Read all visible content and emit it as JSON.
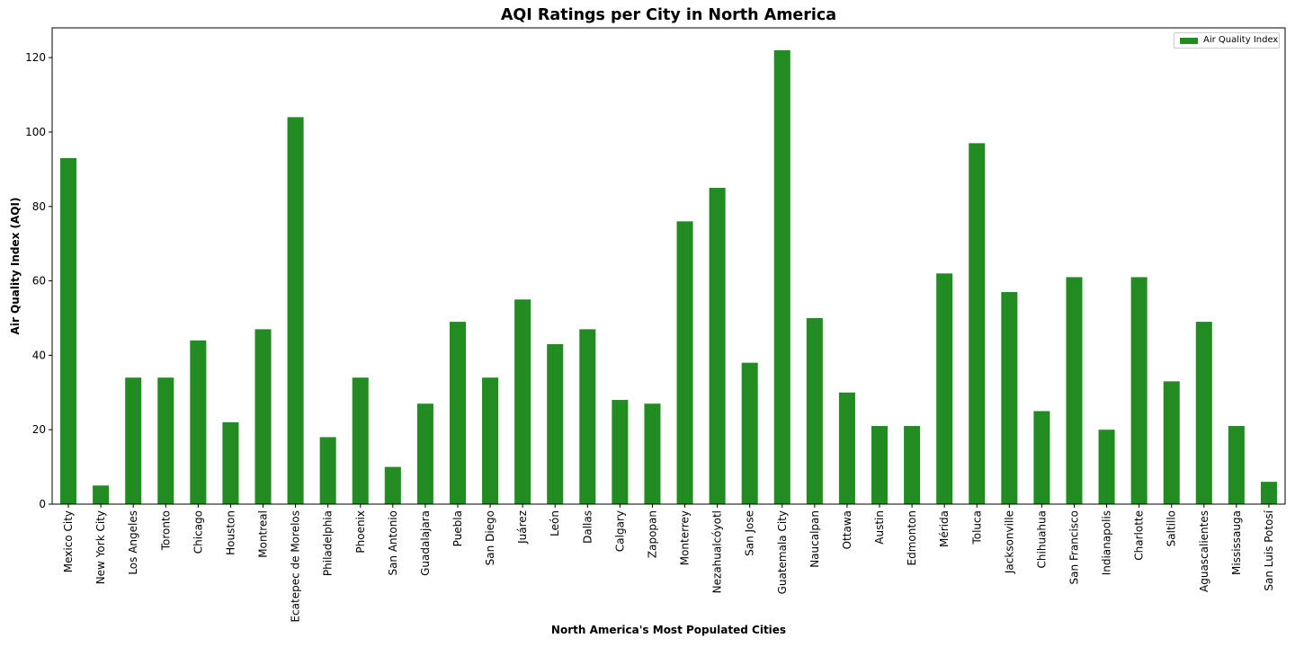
{
  "chart_data": {
    "type": "bar",
    "title": "AQI Ratings per City in North America",
    "xlabel": "North America's Most Populated Cities",
    "ylabel": "Air Quality Index (AQI)",
    "ylim": [
      0,
      128
    ],
    "yticks": [
      0,
      20,
      40,
      60,
      80,
      100,
      120
    ],
    "grid": false,
    "legend_position": "top-right",
    "bar_color": "#228b22",
    "categories": [
      "Mexico City",
      "New York City",
      "Los Angeles",
      "Toronto",
      "Chicago",
      "Houston",
      "Montreal",
      "Ecatepec de Morelos",
      "Philadelphia",
      "Phoenix",
      "San Antonio",
      "Guadalajara",
      "Puebla",
      "San Diego",
      "Juárez",
      "León",
      "Dallas",
      "Calgary",
      "Zapopan",
      "Monterrey",
      "Nezahualcóyotl",
      "San Jose",
      "Guatemala City",
      "Naucalpan",
      "Ottawa",
      "Austin",
      "Edmonton",
      "Mérida",
      "Toluca",
      "Jacksonville",
      "Chihuahua",
      "San Francisco",
      "Indianapolis",
      "Charlotte",
      "Saltillo",
      "Aguascalientes",
      "Mississauga",
      "San Luis Potosí"
    ],
    "series": [
      {
        "name": "Air Quality Index",
        "values": [
          93,
          5,
          34,
          34,
          44,
          22,
          47,
          104,
          18,
          34,
          10,
          27,
          49,
          34,
          55,
          43,
          47,
          28,
          27,
          76,
          85,
          38,
          122,
          50,
          30,
          21,
          21,
          62,
          97,
          57,
          25,
          61,
          20,
          61,
          33,
          49,
          21,
          6
        ]
      }
    ]
  }
}
